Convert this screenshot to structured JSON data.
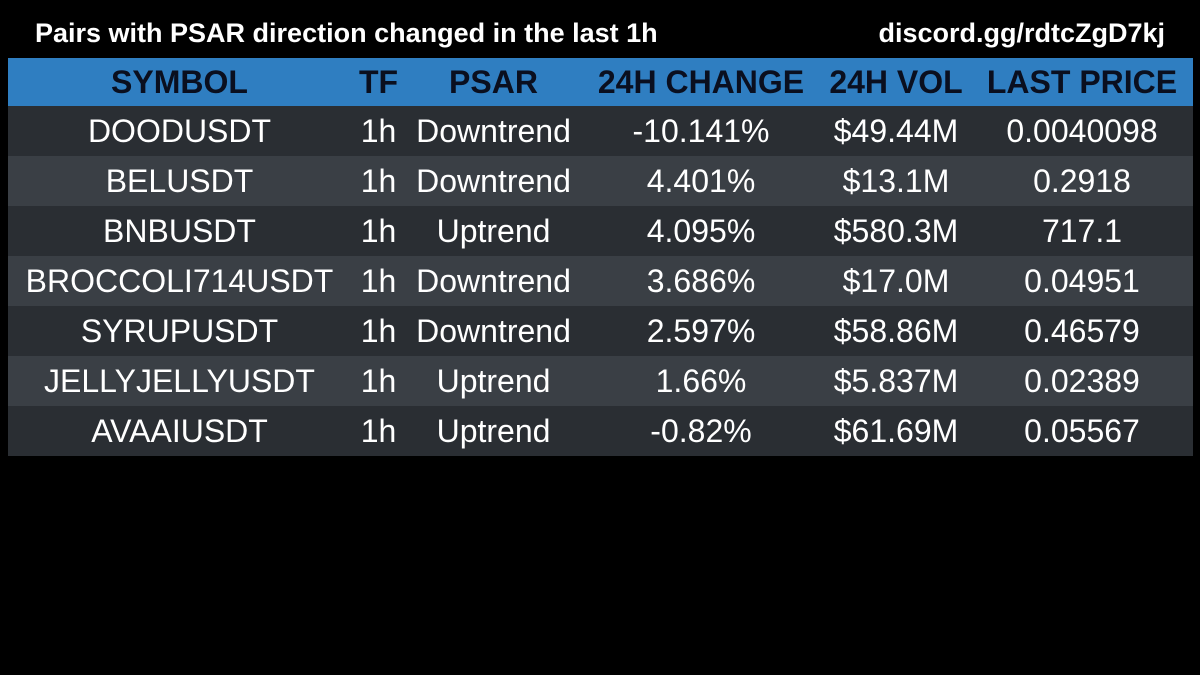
{
  "header": {
    "title": "Pairs with PSAR direction changed in the last 1h",
    "link": "discord.gg/rdtcZgD7kj"
  },
  "table": {
    "columns": [
      "SYMBOL",
      "TF",
      "PSAR",
      "24H CHANGE",
      "24H VOL",
      "LAST PRICE"
    ],
    "rows": [
      [
        "DOODUSDT",
        "1h",
        "Downtrend",
        "-10.141%",
        "$49.44M",
        "0.0040098"
      ],
      [
        "BELUSDT",
        "1h",
        "Downtrend",
        "4.401%",
        "$13.1M",
        "0.2918"
      ],
      [
        "BNBUSDT",
        "1h",
        "Uptrend",
        "4.095%",
        "$580.3M",
        "717.1"
      ],
      [
        "BROCCOLI714USDT",
        "1h",
        "Downtrend",
        "3.686%",
        "$17.0M",
        "0.04951"
      ],
      [
        "SYRUPUSDT",
        "1h",
        "Downtrend",
        "2.597%",
        "$58.86M",
        "0.46579"
      ],
      [
        "JELLYJELLYUSDT",
        "1h",
        "Uptrend",
        "1.66%",
        "$5.837M",
        "0.02389"
      ],
      [
        "AVAAIUSDT",
        "1h",
        "Uptrend",
        "-0.82%",
        "$61.69M",
        "0.05567"
      ]
    ]
  },
  "colors": {
    "background": "#000000",
    "header_bg": "#2f7ec1",
    "row_dark": "#2a2e33",
    "row_light": "#3a3f45",
    "text": "#ffffff"
  }
}
